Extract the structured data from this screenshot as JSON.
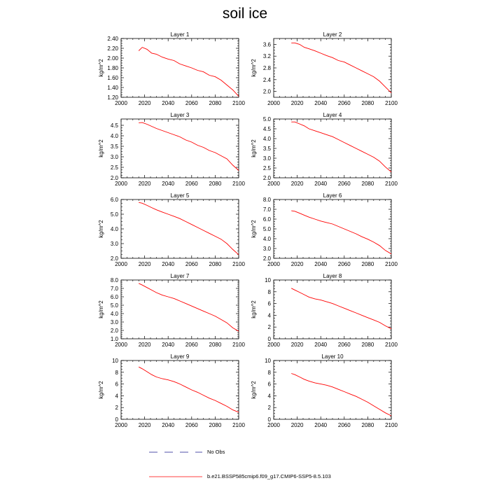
{
  "figure": {
    "title": "soil ice"
  },
  "legend": {
    "obs_label": "No Obs",
    "obs_color": "#1a1a8c",
    "model_label": "b.e21.BSSP585cmip6.f09_g17.CMIP6-SSP5-8.5.103",
    "model_color": "#ff0000"
  },
  "chart_data": [
    {
      "type": "line",
      "title": "Layer 1",
      "xlabel": "",
      "ylabel": "kg/m^2",
      "xlim": [
        2000,
        2100
      ],
      "ylim": [
        1.2,
        2.4
      ],
      "xticks": [
        "2000",
        "2020",
        "2040",
        "2060",
        "2080",
        "2100"
      ],
      "yticks": [
        "1.20",
        "1.40",
        "1.60",
        "1.80",
        "2.00",
        "2.20",
        "2.40"
      ],
      "series": [
        {
          "x": [
            2015,
            2018,
            2022,
            2026,
            2030,
            2035,
            2040,
            2045,
            2050,
            2055,
            2060,
            2065,
            2070,
            2075,
            2080,
            2085,
            2090,
            2095,
            2100
          ],
          "y": [
            2.15,
            2.22,
            2.18,
            2.1,
            2.08,
            2.02,
            1.98,
            1.95,
            1.88,
            1.84,
            1.8,
            1.75,
            1.72,
            1.65,
            1.62,
            1.55,
            1.45,
            1.35,
            1.22
          ]
        }
      ]
    },
    {
      "type": "line",
      "title": "Layer 2",
      "xlabel": "",
      "ylabel": "kg/m^2",
      "xlim": [
        2000,
        2100
      ],
      "ylim": [
        1.8,
        3.8
      ],
      "xticks": [
        "2000",
        "2020",
        "2040",
        "2060",
        "2080",
        "2100"
      ],
      "yticks": [
        "2.0",
        "2.4",
        "2.8",
        "3.2",
        "3.6"
      ],
      "series": [
        {
          "x": [
            2015,
            2018,
            2022,
            2026,
            2030,
            2035,
            2040,
            2045,
            2050,
            2055,
            2060,
            2065,
            2070,
            2075,
            2080,
            2085,
            2090,
            2095,
            2100
          ],
          "y": [
            3.65,
            3.65,
            3.6,
            3.5,
            3.45,
            3.38,
            3.3,
            3.22,
            3.15,
            3.05,
            3.0,
            2.9,
            2.8,
            2.7,
            2.6,
            2.5,
            2.35,
            2.15,
            1.95
          ]
        }
      ]
    },
    {
      "type": "line",
      "title": "Layer 3",
      "xlabel": "",
      "ylabel": "kg/m^2",
      "xlim": [
        2000,
        2100
      ],
      "ylim": [
        2.0,
        4.8
      ],
      "xticks": [
        "2000",
        "2020",
        "2040",
        "2060",
        "2080",
        "2100"
      ],
      "yticks": [
        "2.0",
        "2.5",
        "3.0",
        "3.5",
        "4.0",
        "4.5"
      ],
      "series": [
        {
          "x": [
            2015,
            2018,
            2022,
            2026,
            2030,
            2035,
            2040,
            2045,
            2050,
            2055,
            2060,
            2065,
            2070,
            2075,
            2080,
            2085,
            2090,
            2095,
            2100
          ],
          "y": [
            4.62,
            4.63,
            4.55,
            4.45,
            4.35,
            4.25,
            4.15,
            4.05,
            3.95,
            3.8,
            3.7,
            3.55,
            3.45,
            3.3,
            3.2,
            3.05,
            2.9,
            2.6,
            2.35
          ]
        }
      ]
    },
    {
      "type": "line",
      "title": "Layer 4",
      "xlabel": "",
      "ylabel": "kg/m^2",
      "xlim": [
        2000,
        2100
      ],
      "ylim": [
        2.0,
        5.0
      ],
      "xticks": [
        "2000",
        "2020",
        "2040",
        "2060",
        "2080",
        "2100"
      ],
      "yticks": [
        "2.0",
        "2.5",
        "3.0",
        "3.5",
        "4.0",
        "4.5",
        "5.0"
      ],
      "series": [
        {
          "x": [
            2015,
            2018,
            2022,
            2026,
            2030,
            2035,
            2040,
            2045,
            2050,
            2055,
            2060,
            2065,
            2070,
            2075,
            2080,
            2085,
            2090,
            2095,
            2100
          ],
          "y": [
            4.85,
            4.85,
            4.75,
            4.65,
            4.5,
            4.4,
            4.3,
            4.2,
            4.1,
            3.95,
            3.8,
            3.65,
            3.5,
            3.35,
            3.2,
            3.05,
            2.85,
            2.55,
            2.3
          ]
        }
      ]
    },
    {
      "type": "line",
      "title": "Layer 5",
      "xlabel": "",
      "ylabel": "kg/m^2",
      "xlim": [
        2000,
        2100
      ],
      "ylim": [
        2.0,
        6.0
      ],
      "xticks": [
        "2000",
        "2020",
        "2040",
        "2060",
        "2080",
        "2100"
      ],
      "yticks": [
        "2.0",
        "3.0",
        "4.0",
        "5.0",
        "6.0"
      ],
      "series": [
        {
          "x": [
            2015,
            2018,
            2022,
            2026,
            2030,
            2035,
            2040,
            2045,
            2050,
            2055,
            2060,
            2065,
            2070,
            2075,
            2080,
            2085,
            2090,
            2095,
            2100
          ],
          "y": [
            5.8,
            5.75,
            5.6,
            5.45,
            5.3,
            5.15,
            5.0,
            4.85,
            4.7,
            4.5,
            4.3,
            4.1,
            3.9,
            3.7,
            3.5,
            3.3,
            3.0,
            2.6,
            2.25
          ]
        }
      ]
    },
    {
      "type": "line",
      "title": "Layer 6",
      "xlabel": "",
      "ylabel": "kg/m^2",
      "xlim": [
        2000,
        2100
      ],
      "ylim": [
        2.0,
        8.0
      ],
      "xticks": [
        "2000",
        "2020",
        "2040",
        "2060",
        "2080",
        "2100"
      ],
      "yticks": [
        "2.0",
        "3.0",
        "4.0",
        "5.0",
        "6.0",
        "7.0",
        "8.0"
      ],
      "series": [
        {
          "x": [
            2015,
            2018,
            2022,
            2026,
            2030,
            2035,
            2040,
            2045,
            2050,
            2055,
            2060,
            2065,
            2070,
            2075,
            2080,
            2085,
            2090,
            2095,
            2100
          ],
          "y": [
            6.85,
            6.8,
            6.6,
            6.4,
            6.2,
            6.0,
            5.8,
            5.65,
            5.5,
            5.25,
            5.0,
            4.75,
            4.5,
            4.2,
            3.95,
            3.65,
            3.3,
            2.8,
            2.45
          ]
        }
      ]
    },
    {
      "type": "line",
      "title": "Layer 7",
      "xlabel": "",
      "ylabel": "kg/m^2",
      "xlim": [
        2000,
        2100
      ],
      "ylim": [
        1.0,
        8.0
      ],
      "xticks": [
        "2000",
        "2020",
        "2040",
        "2060",
        "2080",
        "2100"
      ],
      "yticks": [
        "1.0",
        "2.0",
        "3.0",
        "4.0",
        "5.0",
        "6.0",
        "7.0",
        "8.0"
      ],
      "series": [
        {
          "x": [
            2015,
            2018,
            2022,
            2026,
            2030,
            2035,
            2040,
            2045,
            2050,
            2055,
            2060,
            2065,
            2070,
            2075,
            2080,
            2085,
            2090,
            2095,
            2100
          ],
          "y": [
            7.6,
            7.4,
            7.1,
            6.8,
            6.5,
            6.2,
            6.0,
            5.8,
            5.5,
            5.2,
            4.9,
            4.6,
            4.3,
            4.0,
            3.7,
            3.3,
            2.9,
            2.3,
            1.9
          ]
        }
      ]
    },
    {
      "type": "line",
      "title": "Layer 8",
      "xlabel": "",
      "ylabel": "kg/m^2",
      "xlim": [
        2000,
        2100
      ],
      "ylim": [
        0,
        10
      ],
      "xticks": [
        "2000",
        "2020",
        "2040",
        "2060",
        "2080",
        "2100"
      ],
      "yticks": [
        "0",
        "2",
        "4",
        "6",
        "8",
        "10"
      ],
      "series": [
        {
          "x": [
            2015,
            2018,
            2022,
            2026,
            2030,
            2035,
            2040,
            2045,
            2050,
            2055,
            2060,
            2065,
            2070,
            2075,
            2080,
            2085,
            2090,
            2095,
            2100
          ],
          "y": [
            8.6,
            8.3,
            7.9,
            7.5,
            7.1,
            6.8,
            6.6,
            6.3,
            6.0,
            5.6,
            5.2,
            4.8,
            4.4,
            4.0,
            3.6,
            3.2,
            2.8,
            2.2,
            1.7
          ]
        }
      ]
    },
    {
      "type": "line",
      "title": "Layer 9",
      "xlabel": "",
      "ylabel": "kg/m^2",
      "xlim": [
        2000,
        2100
      ],
      "ylim": [
        0,
        10
      ],
      "xticks": [
        "2000",
        "2020",
        "2040",
        "2060",
        "2080",
        "2100"
      ],
      "yticks": [
        "0",
        "2",
        "4",
        "6",
        "8",
        "10"
      ],
      "series": [
        {
          "x": [
            2015,
            2018,
            2022,
            2026,
            2030,
            2035,
            2040,
            2045,
            2050,
            2055,
            2060,
            2065,
            2070,
            2075,
            2080,
            2085,
            2090,
            2095,
            2100
          ],
          "y": [
            8.9,
            8.6,
            8.1,
            7.6,
            7.2,
            6.9,
            6.7,
            6.4,
            6.0,
            5.5,
            5.0,
            4.6,
            4.1,
            3.6,
            3.2,
            2.7,
            2.2,
            1.6,
            1.2
          ]
        }
      ]
    },
    {
      "type": "line",
      "title": "Layer 10",
      "xlabel": "",
      "ylabel": "kg/m^2",
      "xlim": [
        2000,
        2100
      ],
      "ylim": [
        0,
        10
      ],
      "xticks": [
        "2000",
        "2020",
        "2040",
        "2060",
        "2080",
        "2100"
      ],
      "yticks": [
        "0",
        "2",
        "4",
        "6",
        "8",
        "10"
      ],
      "series": [
        {
          "x": [
            2015,
            2018,
            2022,
            2026,
            2030,
            2035,
            2040,
            2045,
            2050,
            2055,
            2060,
            2065,
            2070,
            2075,
            2080,
            2085,
            2090,
            2095,
            2100
          ],
          "y": [
            7.8,
            7.6,
            7.2,
            6.8,
            6.5,
            6.2,
            6.0,
            5.8,
            5.5,
            5.1,
            4.7,
            4.3,
            3.9,
            3.4,
            2.9,
            2.3,
            1.7,
            1.1,
            0.6
          ]
        }
      ]
    }
  ]
}
